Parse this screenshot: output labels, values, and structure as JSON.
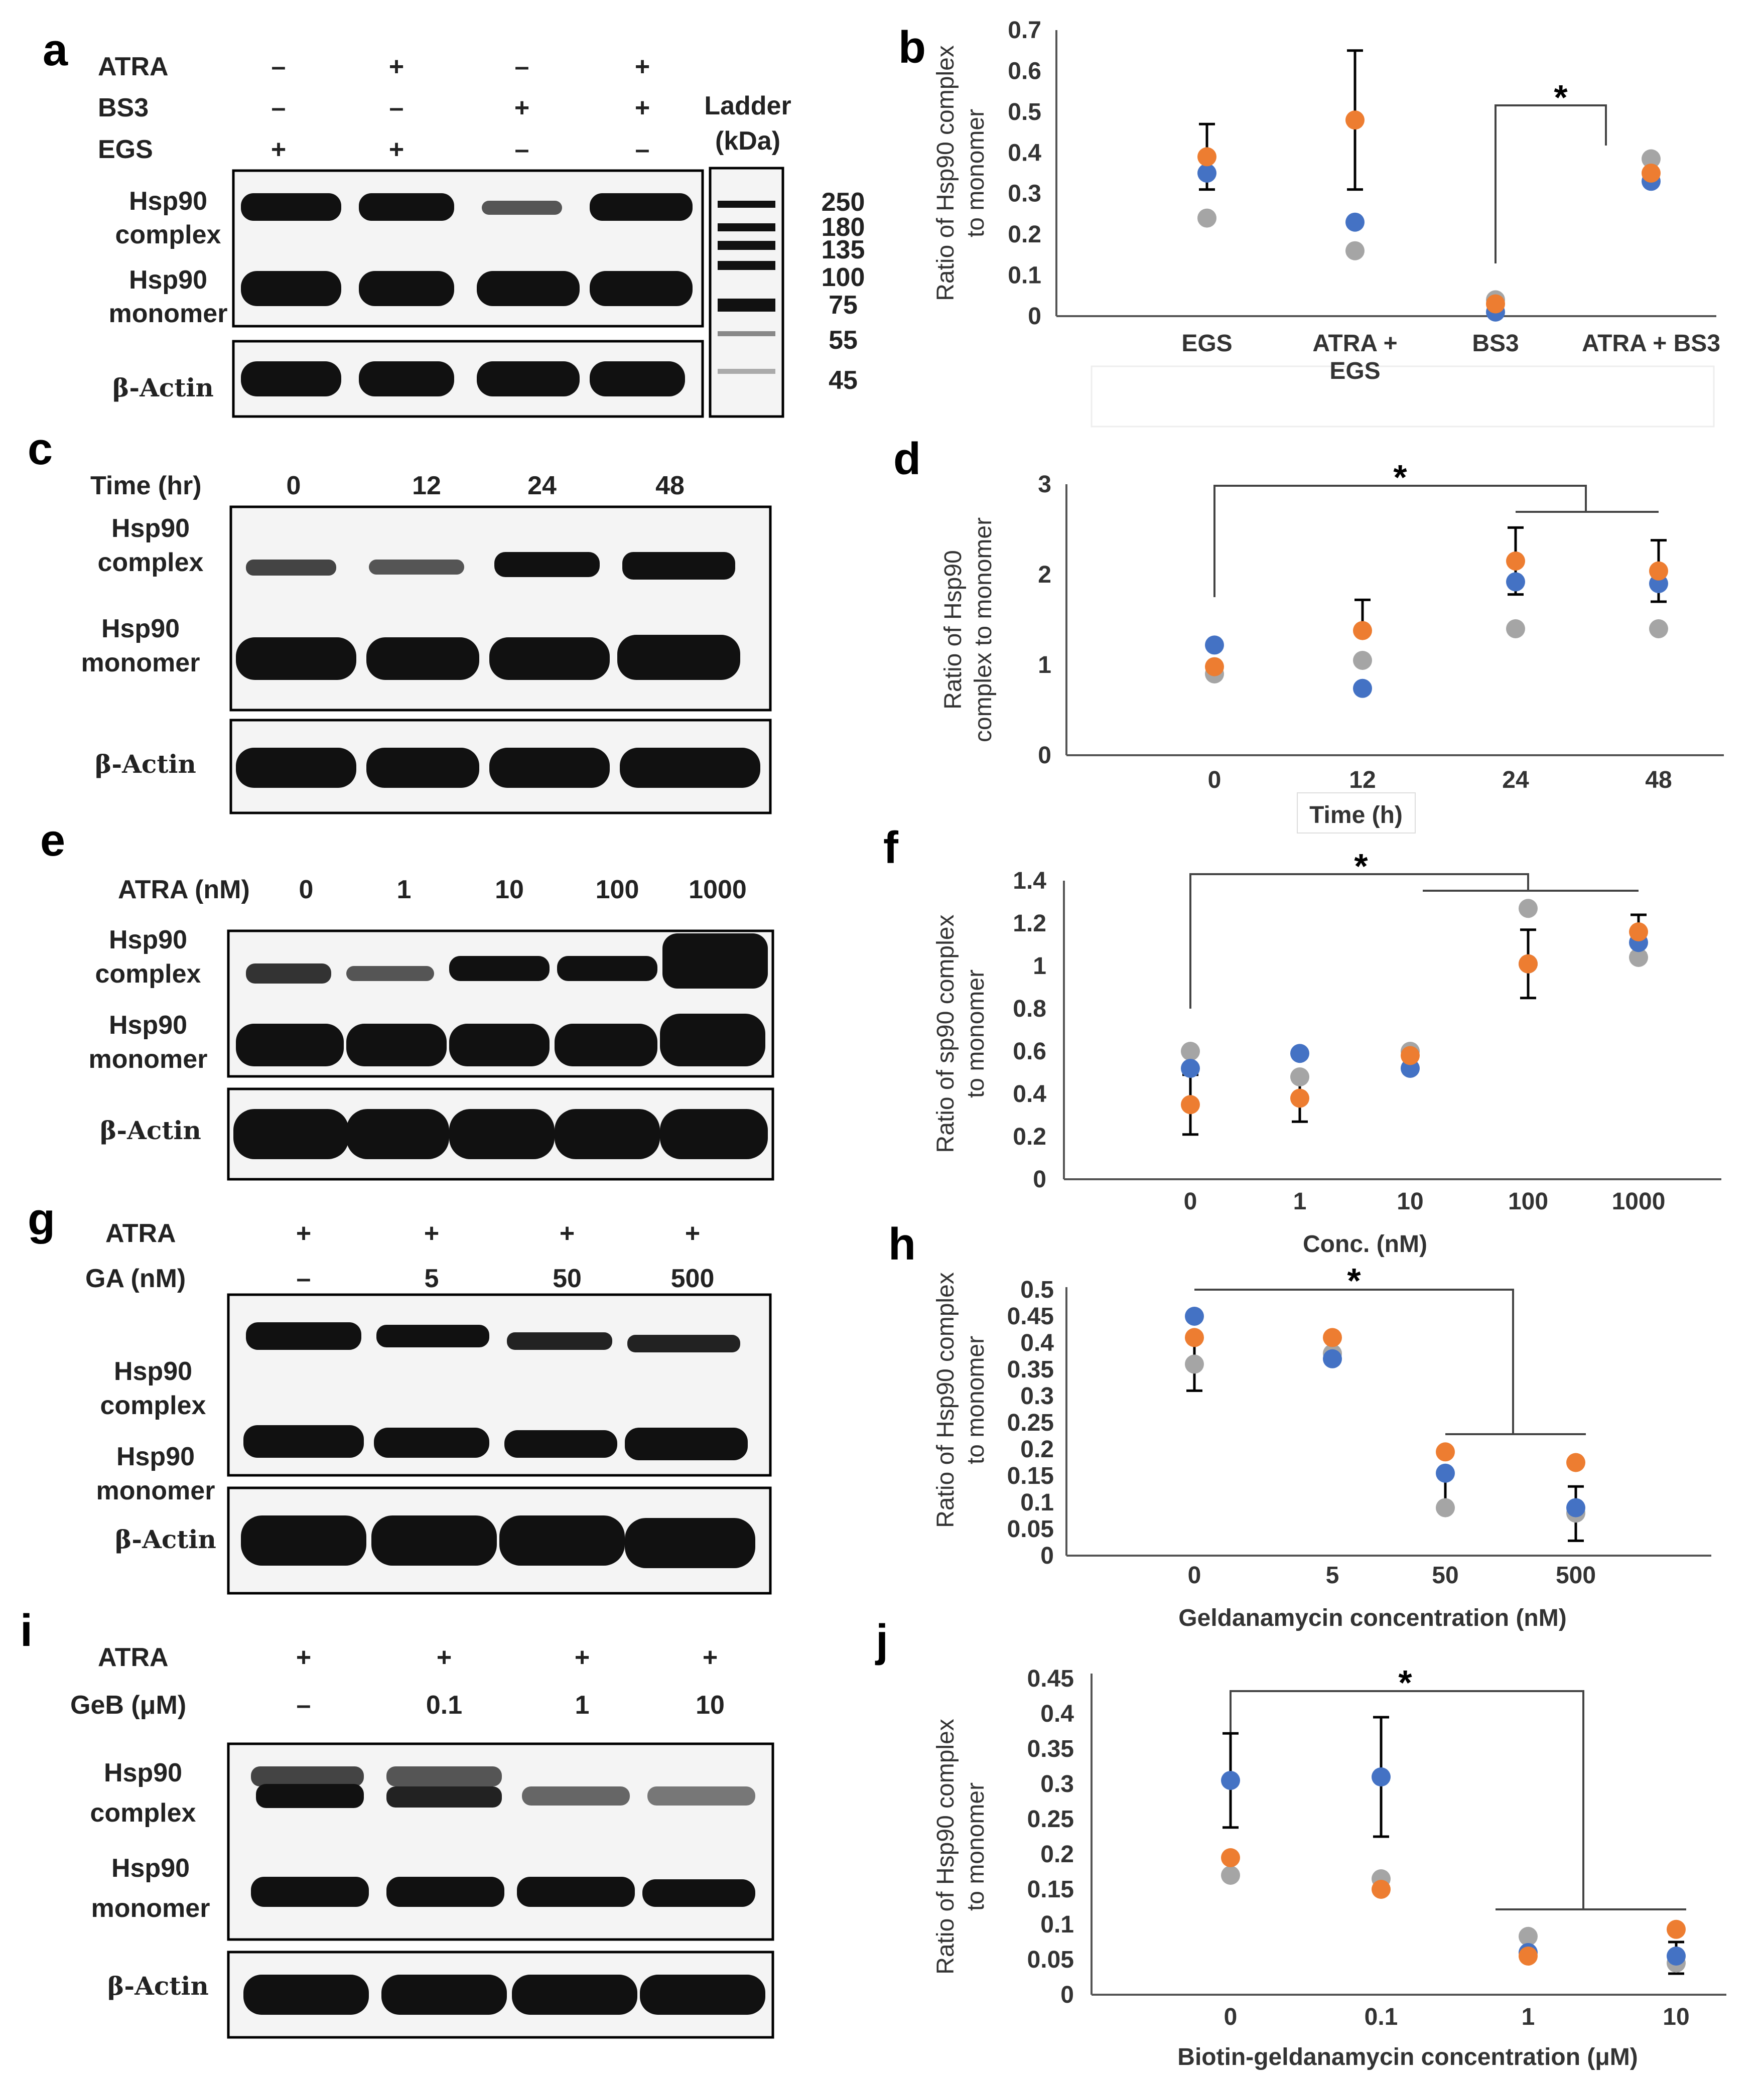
{
  "panel_labels": [
    "a",
    "b",
    "c",
    "d",
    "e",
    "f",
    "g",
    "h",
    "i",
    "j"
  ],
  "blots": {
    "a": {
      "rows": [
        {
          "label": "ATRA",
          "values": [
            "–",
            "+",
            "–",
            "+"
          ]
        },
        {
          "label": "BS3",
          "values": [
            "–",
            "–",
            "+",
            "+"
          ]
        },
        {
          "label": "EGS",
          "values": [
            "+",
            "+",
            "–",
            "–"
          ]
        }
      ],
      "ladder_title": [
        "Ladder",
        "(kDa)"
      ],
      "ladder_marks": [
        "250",
        "180",
        "135",
        "100",
        "75",
        "55",
        "45"
      ],
      "complex": [
        "Hsp90",
        "complex"
      ],
      "monomer": [
        "Hsp90",
        "monomer"
      ],
      "actin": "β-Actin"
    },
    "c": {
      "rows": [
        {
          "label": "Time (hr)",
          "values": [
            "0",
            "12",
            "24",
            "48"
          ]
        }
      ],
      "complex": [
        "Hsp90",
        "complex"
      ],
      "monomer": [
        "Hsp90",
        "monomer"
      ],
      "actin": "β-Actin"
    },
    "e": {
      "rows": [
        {
          "label": "ATRA (nM)",
          "values": [
            "0",
            "1",
            "10",
            "100",
            "1000"
          ]
        }
      ],
      "complex": [
        "Hsp90",
        "complex"
      ],
      "monomer": [
        "Hsp90",
        "monomer"
      ],
      "actin": "β-Actin"
    },
    "g": {
      "rows": [
        {
          "label": "ATRA",
          "values": [
            "+",
            "+",
            "+",
            "+"
          ]
        },
        {
          "label": "GA (nM)",
          "values": [
            "–",
            "5",
            "50",
            "500"
          ]
        }
      ],
      "complex": [
        "Hsp90",
        "complex"
      ],
      "monomer": [
        "Hsp90",
        "monomer"
      ],
      "actin": "β-Actin"
    },
    "i": {
      "rows": [
        {
          "label": "ATRA",
          "values": [
            "+",
            "+",
            "+",
            "+"
          ]
        },
        {
          "label": "GeB (μM)",
          "values": [
            "–",
            "0.1",
            "1",
            "10"
          ]
        }
      ],
      "complex": [
        "Hsp90",
        "complex"
      ],
      "monomer": [
        "Hsp90",
        "monomer"
      ],
      "actin": "β-Actin"
    }
  },
  "colors": {
    "series1": "#4472C4",
    "series2": "#ED7D31",
    "series3": "#A5A5A5"
  },
  "chart_data": [
    {
      "panel": "b",
      "type": "scatter",
      "ylabel": [
        "Ratio of Hsp90 complex",
        "to monomer"
      ],
      "xlabel": "",
      "categories": [
        [
          "EGS"
        ],
        [
          "ATRA +",
          "EGS"
        ],
        [
          "BS3"
        ],
        [
          "ATRA + BS3"
        ]
      ],
      "ylim": [
        0,
        0.7
      ],
      "yticks": [
        "0",
        "0.1",
        "0.2",
        "0.3",
        "0.4",
        "0.5",
        "0.6",
        "0.7"
      ],
      "series": [
        {
          "name": "series1",
          "values": [
            0.35,
            0.23,
            0.01,
            0.33
          ]
        },
        {
          "name": "series2",
          "values": [
            0.39,
            0.48,
            0.03,
            0.35
          ]
        },
        {
          "name": "series3",
          "values": [
            0.24,
            0.16,
            0.04,
            0.385
          ]
        }
      ],
      "error_bars": [
        {
          "center": 0.39,
          "low": 0.31,
          "high": 0.47
        },
        {
          "center": 0.48,
          "low": 0.31,
          "high": 0.65
        },
        null,
        null
      ],
      "significance": "*"
    },
    {
      "panel": "d",
      "type": "scatter",
      "ylabel": [
        "Ratio of Hsp90",
        "complex to monomer"
      ],
      "xlabel": "Time (h)",
      "categories": [
        [
          "0"
        ],
        [
          "12"
        ],
        [
          "24"
        ],
        [
          "48"
        ]
      ],
      "ylim": [
        0,
        3
      ],
      "yticks": [
        "0",
        "1",
        "2",
        "3"
      ],
      "series": [
        {
          "name": "series1",
          "values": [
            1.22,
            0.74,
            1.92,
            1.9
          ]
        },
        {
          "name": "series2",
          "values": [
            0.98,
            1.38,
            2.15,
            2.04
          ]
        },
        {
          "name": "series3",
          "values": [
            0.9,
            1.05,
            1.4,
            1.4
          ]
        }
      ],
      "error_bars": [
        null,
        {
          "center": 1.38,
          "low": 1.38,
          "high": 1.72
        },
        {
          "center": 2.15,
          "low": 1.78,
          "high": 2.52
        },
        {
          "center": 2.04,
          "low": 1.7,
          "high": 2.38
        }
      ],
      "significance": "*"
    },
    {
      "panel": "f",
      "type": "scatter",
      "ylabel": [
        "Ratio of sp90 complex",
        "to monomer"
      ],
      "xlabel": "Conc. (nM)",
      "categories": [
        [
          "0"
        ],
        [
          "1"
        ],
        [
          "10"
        ],
        [
          "100"
        ],
        [
          "1000"
        ]
      ],
      "ylim": [
        0,
        1.4
      ],
      "yticks": [
        "0",
        "0.2",
        "0.4",
        "0.6",
        "0.8",
        "1",
        "1.2",
        "1.4"
      ],
      "series": [
        {
          "name": "series1",
          "values": [
            0.52,
            0.59,
            0.52,
            1.01,
            1.11
          ]
        },
        {
          "name": "series2",
          "values": [
            0.35,
            0.38,
            0.58,
            1.01,
            1.16
          ]
        },
        {
          "name": "series3",
          "values": [
            0.6,
            0.48,
            0.6,
            1.27,
            1.04
          ]
        }
      ],
      "error_bars": [
        {
          "center": 0.35,
          "low": 0.21,
          "high": 0.49
        },
        {
          "center": 0.38,
          "low": 0.27,
          "high": 0.49
        },
        null,
        {
          "center": 1.01,
          "low": 0.85,
          "high": 1.17
        },
        {
          "center": 1.16,
          "low": 1.06,
          "high": 1.24
        }
      ],
      "significance": "*"
    },
    {
      "panel": "h",
      "type": "scatter",
      "ylabel": [
        "Ratio of Hsp90 complex",
        "to monomer"
      ],
      "xlabel": "Geldanamycin concentration (nM)",
      "categories": [
        [
          "0"
        ],
        [
          "5"
        ],
        [
          "50"
        ],
        [
          "500"
        ]
      ],
      "ylim": [
        0,
        0.5
      ],
      "yticks": [
        "0",
        "0.05",
        "0.1",
        "0.15",
        "0.2",
        "0.25",
        "0.3",
        "0.35",
        "0.4",
        "0.45",
        "0.5"
      ],
      "series": [
        {
          "name": "series1",
          "values": [
            0.45,
            0.37,
            0.155,
            0.09
          ]
        },
        {
          "name": "series2",
          "values": [
            0.41,
            0.41,
            0.195,
            0.175
          ]
        },
        {
          "name": "series3",
          "values": [
            0.36,
            0.38,
            0.09,
            0.08
          ]
        }
      ],
      "error_bars": [
        {
          "center": 0.36,
          "low": 0.31,
          "high": 0.41
        },
        null,
        {
          "center": 0.155,
          "low": 0.085,
          "high": 0.155
        },
        {
          "center": 0.09,
          "low": 0.028,
          "high": 0.13
        }
      ],
      "significance": "*"
    },
    {
      "panel": "j",
      "type": "scatter",
      "ylabel": [
        "Ratio of Hsp90 complex",
        "to monomer"
      ],
      "xlabel": "Biotin-geldanamycin concentration (μM)",
      "categories": [
        [
          "0"
        ],
        [
          "0.1"
        ],
        [
          "1"
        ],
        [
          "10"
        ]
      ],
      "ylim": [
        0,
        0.45
      ],
      "yticks": [
        "0",
        "0.05",
        "0.1",
        "0.15",
        "0.2",
        "0.25",
        "0.3",
        "0.35",
        "0.4",
        "0.45"
      ],
      "series": [
        {
          "name": "series1",
          "values": [
            0.305,
            0.31,
            0.06,
            0.055
          ]
        },
        {
          "name": "series2",
          "values": [
            0.195,
            0.15,
            0.055,
            0.093
          ]
        },
        {
          "name": "series3",
          "values": [
            0.17,
            0.165,
            0.083,
            0.045
          ]
        }
      ],
      "error_bars": [
        {
          "center": 0.305,
          "low": 0.238,
          "high": 0.372
        },
        {
          "center": 0.31,
          "low": 0.225,
          "high": 0.395
        },
        null,
        {
          "center": 0.055,
          "low": 0.03,
          "high": 0.075
        }
      ],
      "significance": "*"
    }
  ]
}
